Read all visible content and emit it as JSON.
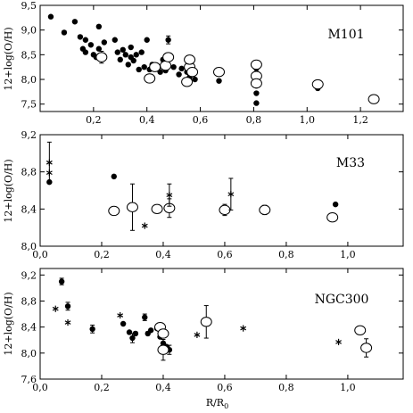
{
  "chart_data": [
    {
      "type": "scatter",
      "label": "M101",
      "ylabel": "12+log(O/H)",
      "xlabel": "",
      "xlim": [
        0.0,
        1.36
      ],
      "ylim": [
        7.35,
        9.5
      ],
      "xticks": [
        0.2,
        0.4,
        0.6,
        0.8,
        1.0,
        1.2
      ],
      "xtick_labels": [
        "0,2",
        "0,4",
        "0,6",
        "0,8",
        "1,0",
        "1,2"
      ],
      "yticks": [
        7.5,
        8.0,
        8.5,
        9.0,
        9.5
      ],
      "ytick_labels": [
        "7,5",
        "8,0",
        "8,5",
        "9,0",
        "9,5"
      ],
      "series": [
        {
          "marker": "filled-circle",
          "points": [
            [
              0.04,
              9.27
            ],
            [
              0.09,
              8.95
            ],
            [
              0.13,
              9.17
            ],
            [
              0.15,
              8.86
            ],
            [
              0.16,
              8.62
            ],
            [
              0.17,
              8.8
            ],
            [
              0.17,
              8.55
            ],
            [
              0.19,
              8.7
            ],
            [
              0.2,
              8.5
            ],
            [
              0.21,
              8.45
            ],
            [
              0.22,
              8.62
            ],
            [
              0.22,
              9.07
            ],
            [
              0.24,
              8.75
            ],
            [
              0.28,
              8.8
            ],
            [
              0.29,
              8.55
            ],
            [
              0.3,
              8.4
            ],
            [
              0.31,
              8.6
            ],
            [
              0.32,
              8.5
            ],
            [
              0.33,
              8.3
            ],
            [
              0.34,
              8.45
            ],
            [
              0.34,
              8.65
            ],
            [
              0.35,
              8.38
            ],
            [
              0.36,
              8.5
            ],
            [
              0.37,
              8.2
            ],
            [
              0.38,
              8.55
            ],
            [
              0.39,
              8.25
            ],
            [
              0.4,
              8.8
            ],
            [
              0.41,
              8.2
            ],
            [
              0.42,
              8.3
            ],
            [
              0.45,
              8.15
            ],
            [
              0.46,
              8.4
            ],
            [
              0.47,
              8.18
            ],
            [
              0.48,
              8.8
            ],
            [
              0.5,
              8.25
            ],
            [
              0.52,
              8.1
            ],
            [
              0.53,
              8.22
            ],
            [
              0.55,
              8.15
            ],
            [
              0.56,
              8.05
            ],
            [
              0.58,
              8.0
            ],
            [
              0.67,
              7.97
            ],
            [
              0.81,
              7.72
            ],
            [
              0.81,
              7.87
            ],
            [
              0.81,
              8.05
            ],
            [
              0.81,
              8.22
            ],
            [
              0.81,
              7.52
            ],
            [
              1.04,
              7.82
            ]
          ],
          "error_bars": [
            [
              0.48,
              8.8,
              0.08
            ]
          ]
        },
        {
          "marker": "open-circle",
          "points": [
            [
              0.23,
              8.45
            ],
            [
              0.41,
              8.02
            ],
            [
              0.43,
              8.25
            ],
            [
              0.47,
              8.28
            ],
            [
              0.48,
              8.45
            ],
            [
              0.55,
              7.95
            ],
            [
              0.56,
              8.25
            ],
            [
              0.56,
              8.4
            ],
            [
              0.57,
              8.15
            ],
            [
              0.67,
              8.15
            ],
            [
              0.81,
              8.3
            ],
            [
              0.81,
              8.07
            ],
            [
              0.81,
              7.92
            ],
            [
              1.04,
              7.9
            ],
            [
              1.25,
              7.6
            ]
          ],
          "error_bars": [
            [
              0.23,
              8.45,
              0.12
            ],
            [
              1.25,
              7.6,
              0.08
            ]
          ]
        }
      ]
    },
    {
      "type": "scatter",
      "label": "M33",
      "ylabel": "12+log(O/H)",
      "xlabel": "",
      "xlim": [
        0.0,
        1.18
      ],
      "ylim": [
        8.0,
        9.2
      ],
      "xticks": [
        0.0,
        0.2,
        0.4,
        0.6,
        0.8,
        1.0
      ],
      "xtick_labels": [
        "0,0",
        "0,2",
        "0,4",
        "0,6",
        "0,8",
        "1,0"
      ],
      "yticks": [
        8.0,
        8.4,
        8.8,
        9.2
      ],
      "ytick_labels": [
        "8,0",
        "8,4",
        "8,8",
        "9,2"
      ],
      "series": [
        {
          "marker": "filled-circle",
          "points": [
            [
              0.03,
              8.69
            ],
            [
              0.24,
              8.75
            ],
            [
              0.6,
              8.38
            ],
            [
              0.96,
              8.45
            ]
          ],
          "error_bars": []
        },
        {
          "marker": "open-circle",
          "points": [
            [
              0.24,
              8.38
            ],
            [
              0.3,
              8.42
            ],
            [
              0.38,
              8.4
            ],
            [
              0.42,
              8.41
            ],
            [
              0.6,
              8.39
            ],
            [
              0.73,
              8.39
            ],
            [
              0.95,
              8.31
            ]
          ],
          "error_bars": [
            [
              0.3,
              8.42,
              0.25
            ],
            [
              0.42,
              8.41,
              0.1
            ],
            [
              0.6,
              8.39,
              0.06
            ],
            [
              0.73,
              8.39,
              0.05
            ]
          ]
        },
        {
          "marker": "asterisk",
          "points": [
            [
              0.03,
              8.9
            ],
            [
              0.03,
              8.79
            ],
            [
              0.34,
              8.22
            ],
            [
              0.42,
              8.55
            ],
            [
              0.62,
              8.56
            ]
          ],
          "error_bars": [
            [
              0.03,
              8.9,
              0.22
            ],
            [
              0.42,
              8.55,
              0.12
            ],
            [
              0.62,
              8.56,
              0.17
            ]
          ]
        }
      ]
    },
    {
      "type": "scatter",
      "label": "NGC300",
      "ylabel": "12+log(O/H)",
      "xlabel": "R/R0",
      "xlim": [
        0.0,
        1.18
      ],
      "ylim": [
        7.6,
        9.3
      ],
      "xticks": [
        0.0,
        0.2,
        0.4,
        0.6,
        0.8,
        1.0
      ],
      "xtick_labels": [
        "0,0",
        "0,2",
        "0,4",
        "0,6",
        "0,8",
        "1,0"
      ],
      "yticks": [
        7.6,
        8.0,
        8.4,
        8.8,
        9.2
      ],
      "ytick_labels": [
        "7,6",
        "8,0",
        "8,4",
        "8,8",
        "9,2"
      ],
      "series": [
        {
          "marker": "filled-circle",
          "points": [
            [
              0.07,
              9.1
            ],
            [
              0.09,
              8.72
            ],
            [
              0.17,
              8.37
            ],
            [
              0.27,
              8.45
            ],
            [
              0.29,
              8.32
            ],
            [
              0.3,
              8.23
            ],
            [
              0.31,
              8.3
            ],
            [
              0.34,
              8.55
            ],
            [
              0.35,
              8.3
            ],
            [
              0.36,
              8.35
            ],
            [
              0.38,
              8.38
            ],
            [
              0.39,
              8.25
            ],
            [
              0.4,
              8.15
            ],
            [
              0.41,
              8.1
            ],
            [
              0.42,
              8.05
            ]
          ],
          "error_bars": [
            [
              0.07,
              9.1,
              0.05
            ],
            [
              0.09,
              8.72,
              0.06
            ],
            [
              0.17,
              8.37,
              0.06
            ],
            [
              0.3,
              8.23,
              0.07
            ],
            [
              0.34,
              8.55,
              0.05
            ],
            [
              0.42,
              8.05,
              0.07
            ]
          ]
        },
        {
          "marker": "open-circle",
          "points": [
            [
              0.39,
              8.4
            ],
            [
              0.4,
              8.3
            ],
            [
              0.4,
              8.05
            ],
            [
              0.54,
              8.48
            ],
            [
              1.04,
              8.35
            ],
            [
              1.06,
              8.08
            ]
          ],
          "error_bars": [
            [
              0.54,
              8.48,
              0.25
            ],
            [
              1.06,
              8.08,
              0.14
            ],
            [
              0.4,
              8.05,
              0.16
            ]
          ]
        },
        {
          "marker": "asterisk",
          "points": [
            [
              0.05,
              8.68
            ],
            [
              0.09,
              8.47
            ],
            [
              0.26,
              8.58
            ],
            [
              0.51,
              8.28
            ],
            [
              0.66,
              8.38
            ],
            [
              0.97,
              8.17
            ]
          ],
          "error_bars": []
        }
      ]
    }
  ]
}
